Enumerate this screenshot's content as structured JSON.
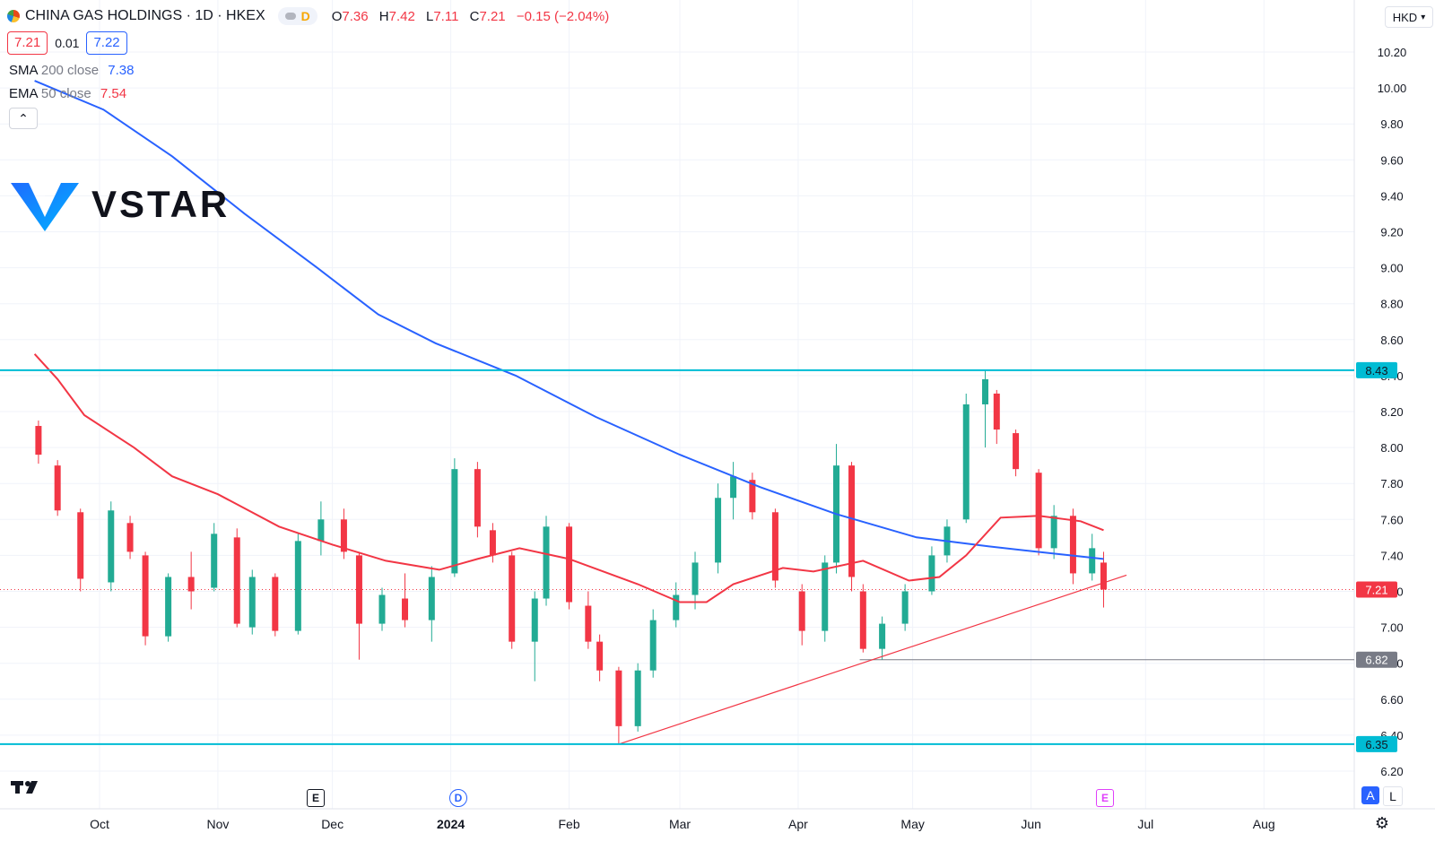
{
  "header": {
    "symbol": "CHINA GAS HOLDINGS · 1D · HKEX",
    "badge": "D",
    "o_label": "O",
    "o_value": "7.36",
    "h_label": "H",
    "h_value": "7.42",
    "l_label": "L",
    "l_value": "7.11",
    "c_label": "C",
    "c_value": "7.21",
    "change": "−0.15 (−2.04%)"
  },
  "quote": {
    "bid": "7.21",
    "spread": "0.01",
    "ask": "7.22"
  },
  "indicators": {
    "sma_label": "SMA",
    "sma_params": "200 close",
    "sma_value": "7.38",
    "ema_label": "EMA",
    "ema_params": "50 close",
    "ema_value": "7.54",
    "collapse_icon": "chevron-up-icon"
  },
  "brand": {
    "name": "VSTAR"
  },
  "currency": {
    "label": "HKD",
    "icon": "chevron-down-icon"
  },
  "events": {
    "earnings_1": "E",
    "dividend": "D",
    "earnings_2": "E"
  },
  "controls": {
    "auto": "A",
    "log": "L",
    "settings_icon": "gear-icon"
  },
  "colors": {
    "up": "#22ab94",
    "down": "#f23645",
    "sma": "#2962ff",
    "ema": "#f23645",
    "hline": "#00bcd4",
    "support": "#787b86"
  },
  "chart_data": {
    "type": "candlestick",
    "title": "CHINA GAS HOLDINGS",
    "timeframe": "1D",
    "exchange": "HKEX",
    "currency": "HKD",
    "ylim": [
      6.1,
      10.3
    ],
    "y_ticks": [
      "10.20",
      "10.00",
      "9.80",
      "9.60",
      "9.40",
      "9.20",
      "9.00",
      "8.80",
      "8.60",
      "8.40",
      "8.20",
      "8.00",
      "7.80",
      "7.60",
      "7.40",
      "7.20",
      "7.00",
      "6.80",
      "6.60",
      "6.40",
      "6.20"
    ],
    "x_ticks": [
      "Oct",
      "Nov",
      "Dec",
      "2024",
      "Feb",
      "Mar",
      "Apr",
      "May",
      "Jun",
      "Jul",
      "Aug"
    ],
    "price_labels": [
      {
        "value": 8.43,
        "label": "8.43",
        "style": "horizontal-line"
      },
      {
        "value": 7.21,
        "label": "7.21",
        "style": "last-price"
      },
      {
        "value": 6.82,
        "label": "6.82",
        "style": "horizontal-ray"
      },
      {
        "value": 6.35,
        "label": "6.35",
        "style": "horizontal-line"
      }
    ],
    "trendline": {
      "from": {
        "date": "2024-02-14",
        "value": 6.35
      },
      "to": {
        "date": "2024-06-26",
        "value": 7.29
      }
    },
    "sma200": [
      {
        "date": "2023-09-14",
        "value": 10.04
      },
      {
        "date": "2023-10-02",
        "value": 9.88
      },
      {
        "date": "2023-10-20",
        "value": 9.62
      },
      {
        "date": "2023-11-08",
        "value": 9.3
      },
      {
        "date": "2023-11-27",
        "value": 9.0
      },
      {
        "date": "2023-12-13",
        "value": 8.74
      },
      {
        "date": "2023-12-28",
        "value": 8.58
      },
      {
        "date": "2024-01-18",
        "value": 8.4
      },
      {
        "date": "2024-02-08",
        "value": 8.17
      },
      {
        "date": "2024-03-01",
        "value": 7.96
      },
      {
        "date": "2024-03-22",
        "value": 7.78
      },
      {
        "date": "2024-04-11",
        "value": 7.63
      },
      {
        "date": "2024-05-02",
        "value": 7.5
      },
      {
        "date": "2024-05-21",
        "value": 7.45
      },
      {
        "date": "2024-06-07",
        "value": 7.41
      },
      {
        "date": "2024-06-20",
        "value": 7.38
      }
    ],
    "ema50": [
      {
        "date": "2023-09-14",
        "value": 8.52
      },
      {
        "date": "2023-09-20",
        "value": 8.38
      },
      {
        "date": "2023-09-27",
        "value": 8.18
      },
      {
        "date": "2023-10-10",
        "value": 8.0
      },
      {
        "date": "2023-10-20",
        "value": 7.84
      },
      {
        "date": "2023-11-01",
        "value": 7.74
      },
      {
        "date": "2023-11-17",
        "value": 7.56
      },
      {
        "date": "2023-12-01",
        "value": 7.46
      },
      {
        "date": "2023-12-15",
        "value": 7.37
      },
      {
        "date": "2023-12-29",
        "value": 7.32
      },
      {
        "date": "2024-01-08",
        "value": 7.38
      },
      {
        "date": "2024-01-19",
        "value": 7.44
      },
      {
        "date": "2024-02-01",
        "value": 7.38
      },
      {
        "date": "2024-02-19",
        "value": 7.24
      },
      {
        "date": "2024-03-01",
        "value": 7.14
      },
      {
        "date": "2024-03-08",
        "value": 7.14
      },
      {
        "date": "2024-03-15",
        "value": 7.24
      },
      {
        "date": "2024-03-28",
        "value": 7.33
      },
      {
        "date": "2024-04-05",
        "value": 7.31
      },
      {
        "date": "2024-04-18",
        "value": 7.37
      },
      {
        "date": "2024-04-30",
        "value": 7.26
      },
      {
        "date": "2024-05-08",
        "value": 7.28
      },
      {
        "date": "2024-05-15",
        "value": 7.4
      },
      {
        "date": "2024-05-24",
        "value": 7.61
      },
      {
        "date": "2024-06-03",
        "value": 7.62
      },
      {
        "date": "2024-06-14",
        "value": 7.59
      },
      {
        "date": "2024-06-20",
        "value": 7.54
      }
    ],
    "candles": [
      {
        "date": "2023-09-15",
        "o": 8.12,
        "h": 8.15,
        "l": 7.91,
        "c": 7.96
      },
      {
        "date": "2023-09-20",
        "o": 7.9,
        "h": 7.93,
        "l": 7.62,
        "c": 7.65
      },
      {
        "date": "2023-09-26",
        "o": 7.64,
        "h": 7.66,
        "l": 7.2,
        "c": 7.27
      },
      {
        "date": "2023-10-04",
        "o": 7.25,
        "h": 7.7,
        "l": 7.2,
        "c": 7.65
      },
      {
        "date": "2023-10-09",
        "o": 7.58,
        "h": 7.62,
        "l": 7.38,
        "c": 7.42
      },
      {
        "date": "2023-10-13",
        "o": 7.4,
        "h": 7.42,
        "l": 6.9,
        "c": 6.95
      },
      {
        "date": "2023-10-19",
        "o": 6.95,
        "h": 7.3,
        "l": 6.92,
        "c": 7.28
      },
      {
        "date": "2023-10-25",
        "o": 7.28,
        "h": 7.42,
        "l": 7.1,
        "c": 7.2
      },
      {
        "date": "2023-10-31",
        "o": 7.22,
        "h": 7.58,
        "l": 7.2,
        "c": 7.52
      },
      {
        "date": "2023-11-06",
        "o": 7.5,
        "h": 7.55,
        "l": 7.0,
        "c": 7.02
      },
      {
        "date": "2023-11-10",
        "o": 7.0,
        "h": 7.32,
        "l": 6.96,
        "c": 7.28
      },
      {
        "date": "2023-11-16",
        "o": 7.28,
        "h": 7.3,
        "l": 6.95,
        "c": 6.98
      },
      {
        "date": "2023-11-22",
        "o": 6.98,
        "h": 7.52,
        "l": 6.96,
        "c": 7.48
      },
      {
        "date": "2023-11-28",
        "o": 7.48,
        "h": 7.7,
        "l": 7.4,
        "c": 7.6
      },
      {
        "date": "2023-12-04",
        "o": 7.6,
        "h": 7.66,
        "l": 7.38,
        "c": 7.42
      },
      {
        "date": "2023-12-08",
        "o": 7.4,
        "h": 7.42,
        "l": 6.82,
        "c": 7.02
      },
      {
        "date": "2023-12-14",
        "o": 7.02,
        "h": 7.22,
        "l": 6.98,
        "c": 7.18
      },
      {
        "date": "2023-12-20",
        "o": 7.16,
        "h": 7.3,
        "l": 7.0,
        "c": 7.04
      },
      {
        "date": "2023-12-27",
        "o": 7.04,
        "h": 7.34,
        "l": 6.92,
        "c": 7.28
      },
      {
        "date": "2024-01-02",
        "o": 7.3,
        "h": 7.94,
        "l": 7.28,
        "c": 7.88
      },
      {
        "date": "2024-01-08",
        "o": 7.88,
        "h": 7.92,
        "l": 7.5,
        "c": 7.56
      },
      {
        "date": "2024-01-12",
        "o": 7.54,
        "h": 7.58,
        "l": 7.36,
        "c": 7.4
      },
      {
        "date": "2024-01-17",
        "o": 7.4,
        "h": 7.42,
        "l": 6.88,
        "c": 6.92
      },
      {
        "date": "2024-01-23",
        "o": 6.92,
        "h": 7.2,
        "l": 6.7,
        "c": 7.16
      },
      {
        "date": "2024-01-26",
        "o": 7.16,
        "h": 7.62,
        "l": 7.12,
        "c": 7.56
      },
      {
        "date": "2024-02-01",
        "o": 7.56,
        "h": 7.58,
        "l": 7.1,
        "c": 7.14
      },
      {
        "date": "2024-02-06",
        "o": 7.12,
        "h": 7.2,
        "l": 6.88,
        "c": 6.92
      },
      {
        "date": "2024-02-09",
        "o": 6.92,
        "h": 6.96,
        "l": 6.7,
        "c": 6.76
      },
      {
        "date": "2024-02-14",
        "o": 6.76,
        "h": 6.78,
        "l": 6.35,
        "c": 6.45
      },
      {
        "date": "2024-02-19",
        "o": 6.45,
        "h": 6.8,
        "l": 6.42,
        "c": 6.76
      },
      {
        "date": "2024-02-23",
        "o": 6.76,
        "h": 7.1,
        "l": 6.72,
        "c": 7.04
      },
      {
        "date": "2024-02-29",
        "o": 7.04,
        "h": 7.25,
        "l": 7.0,
        "c": 7.18
      },
      {
        "date": "2024-03-05",
        "o": 7.18,
        "h": 7.42,
        "l": 7.1,
        "c": 7.36
      },
      {
        "date": "2024-03-11",
        "o": 7.36,
        "h": 7.8,
        "l": 7.3,
        "c": 7.72
      },
      {
        "date": "2024-03-15",
        "o": 7.72,
        "h": 7.92,
        "l": 7.6,
        "c": 7.84
      },
      {
        "date": "2024-03-20",
        "o": 7.82,
        "h": 7.86,
        "l": 7.6,
        "c": 7.64
      },
      {
        "date": "2024-03-26",
        "o": 7.64,
        "h": 7.66,
        "l": 7.22,
        "c": 7.26
      },
      {
        "date": "2024-04-02",
        "o": 7.2,
        "h": 7.24,
        "l": 6.9,
        "c": 6.98
      },
      {
        "date": "2024-04-08",
        "o": 6.98,
        "h": 7.4,
        "l": 6.92,
        "c": 7.36
      },
      {
        "date": "2024-04-11",
        "o": 7.36,
        "h": 8.02,
        "l": 7.3,
        "c": 7.9
      },
      {
        "date": "2024-04-15",
        "o": 7.9,
        "h": 7.92,
        "l": 7.2,
        "c": 7.28
      },
      {
        "date": "2024-04-18",
        "o": 7.2,
        "h": 7.24,
        "l": 6.86,
        "c": 6.88
      },
      {
        "date": "2024-04-23",
        "o": 6.88,
        "h": 7.06,
        "l": 6.82,
        "c": 7.02
      },
      {
        "date": "2024-04-29",
        "o": 7.02,
        "h": 7.24,
        "l": 6.98,
        "c": 7.2
      },
      {
        "date": "2024-05-06",
        "o": 7.2,
        "h": 7.45,
        "l": 7.18,
        "c": 7.4
      },
      {
        "date": "2024-05-10",
        "o": 7.4,
        "h": 7.6,
        "l": 7.36,
        "c": 7.56
      },
      {
        "date": "2024-05-15",
        "o": 7.6,
        "h": 8.3,
        "l": 7.58,
        "c": 8.24
      },
      {
        "date": "2024-05-20",
        "o": 8.24,
        "h": 8.43,
        "l": 8.0,
        "c": 8.38
      },
      {
        "date": "2024-05-23",
        "o": 8.3,
        "h": 8.32,
        "l": 8.02,
        "c": 8.1
      },
      {
        "date": "2024-05-28",
        "o": 8.08,
        "h": 8.1,
        "l": 7.84,
        "c": 7.88
      },
      {
        "date": "2024-06-03",
        "o": 7.86,
        "h": 7.88,
        "l": 7.4,
        "c": 7.44
      },
      {
        "date": "2024-06-07",
        "o": 7.44,
        "h": 7.68,
        "l": 7.38,
        "c": 7.62
      },
      {
        "date": "2024-06-12",
        "o": 7.62,
        "h": 7.66,
        "l": 7.24,
        "c": 7.3
      },
      {
        "date": "2024-06-17",
        "o": 7.3,
        "h": 7.52,
        "l": 7.26,
        "c": 7.44
      },
      {
        "date": "2024-06-20",
        "o": 7.36,
        "h": 7.42,
        "l": 7.11,
        "c": 7.21
      }
    ]
  }
}
